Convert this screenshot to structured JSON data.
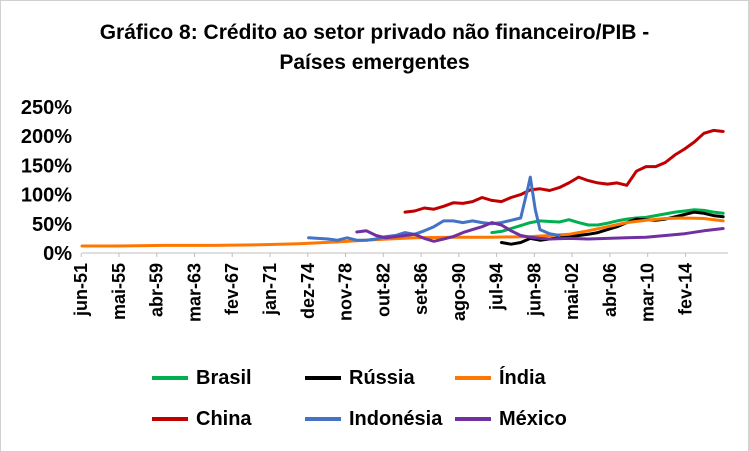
{
  "chart_data": {
    "type": "line",
    "title_line1": "Gráfico 8: Crédito ao setor privado não financeiro/PIB -",
    "title_line2": "Países emergentes",
    "y_ticks": [
      {
        "value": 0,
        "label": "0%"
      },
      {
        "value": 50,
        "label": "50%"
      },
      {
        "value": 100,
        "label": "100%"
      },
      {
        "value": 150,
        "label": "150%"
      },
      {
        "value": 200,
        "label": "200%"
      },
      {
        "value": 250,
        "label": "250%"
      }
    ],
    "ylim": [
      0,
      250
    ],
    "xlim": [
      1951.5,
      2018.5
    ],
    "x_ticks": [
      {
        "value": 1951.42,
        "label": "jun-51"
      },
      {
        "value": 1955.33,
        "label": "mai-55"
      },
      {
        "value": 1959.25,
        "label": "abr-59"
      },
      {
        "value": 1963.17,
        "label": "mar-63"
      },
      {
        "value": 1967.08,
        "label": "fev-67"
      },
      {
        "value": 1971.0,
        "label": "jan-71"
      },
      {
        "value": 1974.92,
        "label": "dez-74"
      },
      {
        "value": 1978.83,
        "label": "nov-78"
      },
      {
        "value": 1982.75,
        "label": "out-82"
      },
      {
        "value": 1986.67,
        "label": "set-86"
      },
      {
        "value": 1990.58,
        "label": "ago-90"
      },
      {
        "value": 1994.5,
        "label": "jul-94"
      },
      {
        "value": 1998.42,
        "label": "jun-98"
      },
      {
        "value": 2002.33,
        "label": "mai-02"
      },
      {
        "value": 2006.25,
        "label": "abr-06"
      },
      {
        "value": 2010.17,
        "label": "mar-10"
      },
      {
        "value": 2014.08,
        "label": "fev-14"
      }
    ],
    "series": [
      {
        "name": "Brasil",
        "color": "#00B050",
        "points": [
          [
            1994.0,
            35
          ],
          [
            1995.0,
            37
          ],
          [
            1996.0,
            42
          ],
          [
            1997.0,
            47
          ],
          [
            1998.0,
            52
          ],
          [
            1999.0,
            55
          ],
          [
            2000.0,
            54
          ],
          [
            2001.0,
            53
          ],
          [
            2002.0,
            57
          ],
          [
            2003.0,
            52
          ],
          [
            2004.0,
            48
          ],
          [
            2005.0,
            48
          ],
          [
            2006.0,
            51
          ],
          [
            2007.0,
            55
          ],
          [
            2008.0,
            58
          ],
          [
            2009.0,
            60
          ],
          [
            2010.0,
            61
          ],
          [
            2011.0,
            64
          ],
          [
            2012.0,
            67
          ],
          [
            2013.0,
            70
          ],
          [
            2014.0,
            72
          ],
          [
            2015.0,
            74
          ],
          [
            2016.0,
            73
          ],
          [
            2017.0,
            70
          ],
          [
            2018.0,
            68
          ]
        ]
      },
      {
        "name": "Rússia",
        "color": "#000000",
        "points": [
          [
            1995.0,
            18
          ],
          [
            1996.0,
            15
          ],
          [
            1997.0,
            18
          ],
          [
            1998.0,
            25
          ],
          [
            1999.0,
            22
          ],
          [
            2000.0,
            24
          ],
          [
            2001.0,
            26
          ],
          [
            2002.0,
            28
          ],
          [
            2003.0,
            30
          ],
          [
            2004.0,
            32
          ],
          [
            2005.0,
            35
          ],
          [
            2006.0,
            40
          ],
          [
            2007.0,
            45
          ],
          [
            2008.0,
            52
          ],
          [
            2009.0,
            58
          ],
          [
            2010.0,
            57
          ],
          [
            2011.0,
            56
          ],
          [
            2012.0,
            58
          ],
          [
            2013.0,
            62
          ],
          [
            2014.0,
            66
          ],
          [
            2015.0,
            70
          ],
          [
            2016.0,
            68
          ],
          [
            2017.0,
            64
          ],
          [
            2018.0,
            62
          ]
        ]
      },
      {
        "name": "Índia",
        "color": "#FF7700",
        "points": [
          [
            1951.5,
            12
          ],
          [
            1955.0,
            12
          ],
          [
            1960.0,
            13
          ],
          [
            1965.0,
            13
          ],
          [
            1970.0,
            14
          ],
          [
            1974.0,
            16
          ],
          [
            1978.0,
            19
          ],
          [
            1982.0,
            23
          ],
          [
            1986.0,
            26
          ],
          [
            1990.0,
            27
          ],
          [
            1994.0,
            27
          ],
          [
            1998.0,
            28
          ],
          [
            2000.0,
            30
          ],
          [
            2002.0,
            32
          ],
          [
            2004.0,
            38
          ],
          [
            2006.0,
            45
          ],
          [
            2008.0,
            52
          ],
          [
            2010.0,
            56
          ],
          [
            2012.0,
            59
          ],
          [
            2014.0,
            60
          ],
          [
            2016.0,
            59
          ],
          [
            2018.0,
            55
          ]
        ]
      },
      {
        "name": "China",
        "color": "#C00000",
        "points": [
          [
            1985.0,
            70
          ],
          [
            1986.0,
            72
          ],
          [
            1987.0,
            77
          ],
          [
            1988.0,
            75
          ],
          [
            1989.0,
            80
          ],
          [
            1990.0,
            86
          ],
          [
            1991.0,
            85
          ],
          [
            1992.0,
            88
          ],
          [
            1993.0,
            95
          ],
          [
            1994.0,
            90
          ],
          [
            1995.0,
            88
          ],
          [
            1996.0,
            95
          ],
          [
            1997.0,
            100
          ],
          [
            1998.0,
            108
          ],
          [
            1999.0,
            110
          ],
          [
            2000.0,
            107
          ],
          [
            2001.0,
            112
          ],
          [
            2002.0,
            120
          ],
          [
            2003.0,
            130
          ],
          [
            2004.0,
            124
          ],
          [
            2005.0,
            120
          ],
          [
            2006.0,
            118
          ],
          [
            2007.0,
            120
          ],
          [
            2008.0,
            116
          ],
          [
            2009.0,
            140
          ],
          [
            2010.0,
            148
          ],
          [
            2011.0,
            148
          ],
          [
            2012.0,
            155
          ],
          [
            2013.0,
            168
          ],
          [
            2014.0,
            178
          ],
          [
            2015.0,
            190
          ],
          [
            2016.0,
            205
          ],
          [
            2017.0,
            210
          ],
          [
            2018.0,
            208
          ]
        ]
      },
      {
        "name": "Indonésia",
        "color": "#4472C4",
        "points": [
          [
            1975.0,
            26
          ],
          [
            1976.0,
            25
          ],
          [
            1977.0,
            24
          ],
          [
            1978.0,
            22
          ],
          [
            1979.0,
            26
          ],
          [
            1980.0,
            22
          ],
          [
            1981.0,
            22
          ],
          [
            1982.0,
            24
          ],
          [
            1983.0,
            28
          ],
          [
            1984.0,
            30
          ],
          [
            1985.0,
            35
          ],
          [
            1986.0,
            32
          ],
          [
            1987.0,
            38
          ],
          [
            1988.0,
            45
          ],
          [
            1989.0,
            55
          ],
          [
            1990.0,
            55
          ],
          [
            1991.0,
            52
          ],
          [
            1992.0,
            55
          ],
          [
            1993.0,
            52
          ],
          [
            1994.0,
            50
          ],
          [
            1995.0,
            52
          ],
          [
            1996.0,
            56
          ],
          [
            1997.0,
            60
          ],
          [
            1997.8,
            115
          ],
          [
            1998.0,
            130
          ],
          [
            1998.5,
            75
          ],
          [
            1999.0,
            40
          ],
          [
            2000.0,
            33
          ],
          [
            2001.0,
            30
          ]
        ]
      },
      {
        "name": "México",
        "color": "#7030A0",
        "points": [
          [
            1980.0,
            36
          ],
          [
            1981.0,
            38
          ],
          [
            1982.0,
            30
          ],
          [
            1983.0,
            26
          ],
          [
            1984.0,
            28
          ],
          [
            1985.0,
            30
          ],
          [
            1986.0,
            32
          ],
          [
            1987.0,
            25
          ],
          [
            1988.0,
            20
          ],
          [
            1989.0,
            24
          ],
          [
            1990.0,
            28
          ],
          [
            1991.0,
            35
          ],
          [
            1992.0,
            40
          ],
          [
            1993.0,
            45
          ],
          [
            1994.0,
            52
          ],
          [
            1995.0,
            48
          ],
          [
            1996.0,
            38
          ],
          [
            1997.0,
            30
          ],
          [
            1998.0,
            27
          ],
          [
            1999.0,
            25
          ],
          [
            2000.0,
            24
          ],
          [
            2002.0,
            25
          ],
          [
            2004.0,
            24
          ],
          [
            2006.0,
            25
          ],
          [
            2008.0,
            26
          ],
          [
            2010.0,
            27
          ],
          [
            2012.0,
            30
          ],
          [
            2014.0,
            33
          ],
          [
            2016.0,
            38
          ],
          [
            2018.0,
            42
          ]
        ]
      }
    ],
    "legend": [
      {
        "label": "Brasil",
        "color": "#00B050"
      },
      {
        "label": "Rússia",
        "color": "#000000"
      },
      {
        "label": "Índia",
        "color": "#FF7700"
      },
      {
        "label": "China",
        "color": "#C00000"
      },
      {
        "label": "Indonésia",
        "color": "#4472C4"
      },
      {
        "label": "México",
        "color": "#7030A0"
      }
    ],
    "legend_position": "bottom"
  }
}
